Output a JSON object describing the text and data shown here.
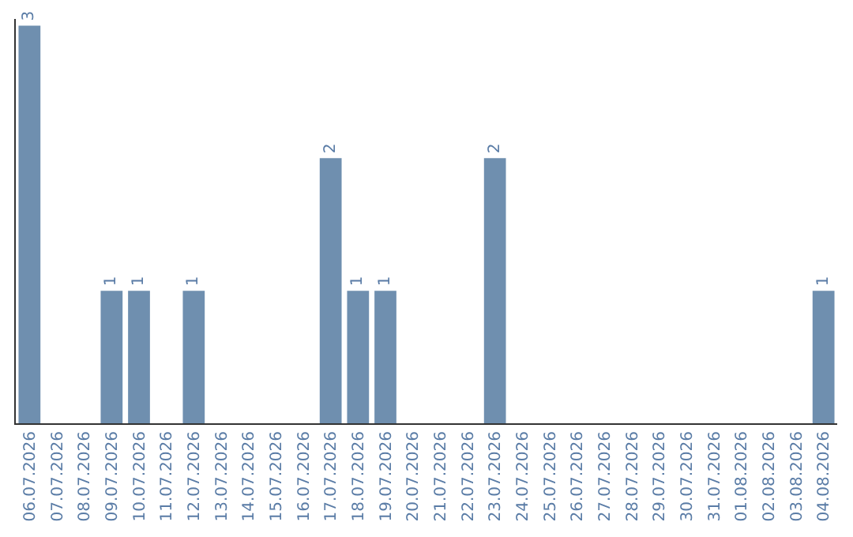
{
  "chart_data": {
    "type": "bar",
    "categories": [
      "06.07.2026",
      "07.07.2026",
      "08.07.2026",
      "09.07.2026",
      "10.07.2026",
      "11.07.2026",
      "12.07.2026",
      "13.07.2026",
      "14.07.2026",
      "15.07.2026",
      "16.07.2026",
      "17.07.2026",
      "18.07.2026",
      "19.07.2026",
      "20.07.2026",
      "21.07.2026",
      "22.07.2026",
      "23.07.2026",
      "24.07.2026",
      "25.07.2026",
      "26.07.2026",
      "27.07.2026",
      "28.07.2026",
      "29.07.2026",
      "30.07.2026",
      "31.07.2026",
      "01.08.2026",
      "02.08.2026",
      "03.08.2026",
      "04.08.2026"
    ],
    "values": [
      3,
      0,
      0,
      1,
      1,
      0,
      1,
      0,
      0,
      0,
      0,
      2,
      1,
      1,
      0,
      0,
      0,
      2,
      0,
      0,
      0,
      0,
      0,
      0,
      0,
      0,
      0,
      0,
      0,
      1
    ],
    "value_labels": [
      "3",
      null,
      null,
      "1",
      "1",
      null,
      "1",
      null,
      null,
      null,
      null,
      "2",
      "1",
      "1",
      null,
      null,
      null,
      "2",
      null,
      null,
      null,
      null,
      null,
      null,
      null,
      null,
      null,
      null,
      null,
      "1"
    ],
    "color": "#6f8faf",
    "ylim": [
      0,
      3.05
    ],
    "tick_labels": "x",
    "legend": false
  }
}
